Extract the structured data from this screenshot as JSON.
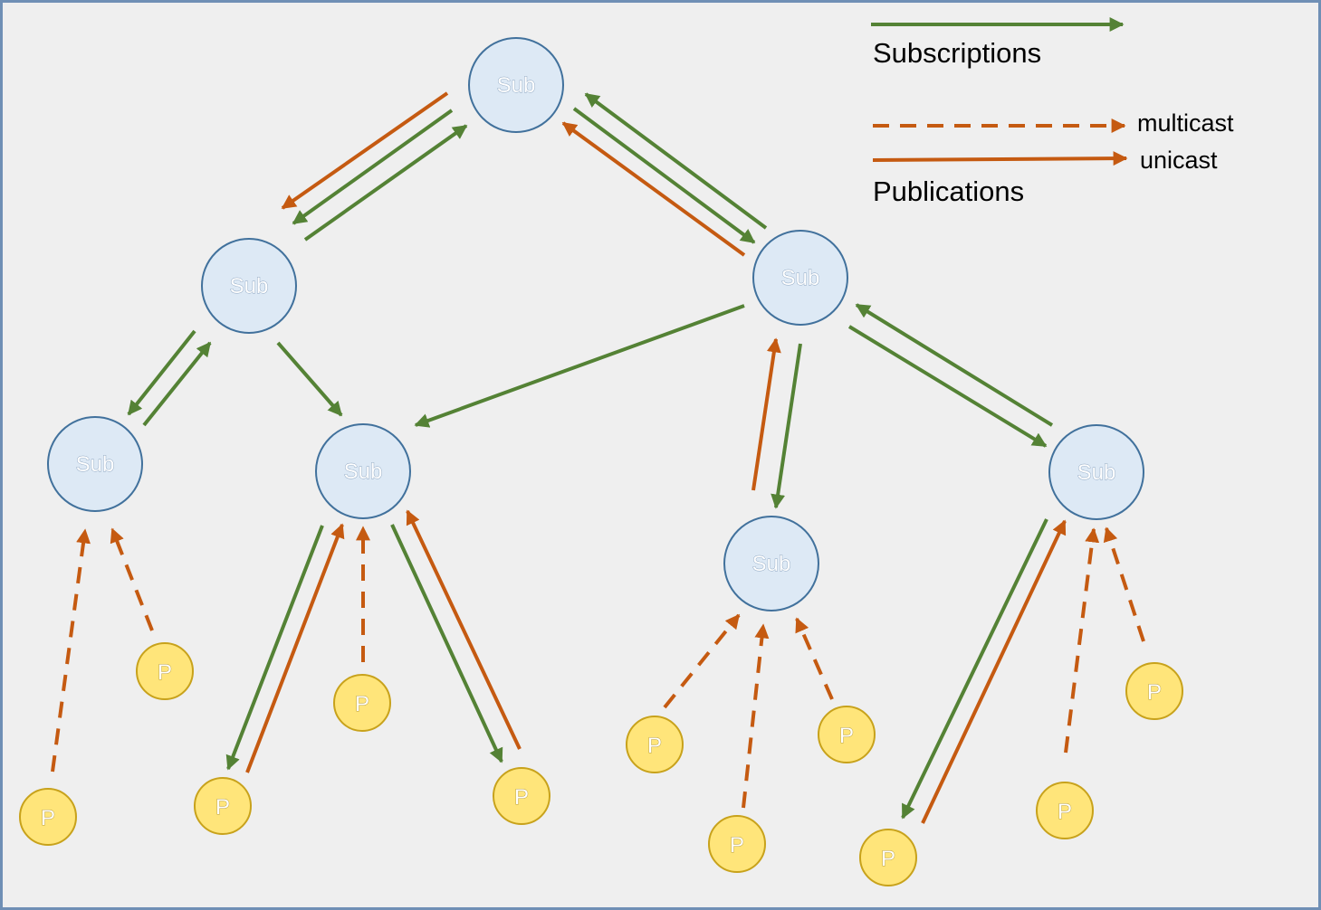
{
  "colors": {
    "subscription": "#548235",
    "publication": "#c55a11",
    "sub_node_fill": "#dde9f5",
    "sub_node_stroke": "#41719c",
    "pub_node_fill": "#ffe57a",
    "pub_node_stroke": "#c8a21b"
  },
  "legend": {
    "subscriptions_label": "Subscriptions",
    "multicast_label": "multicast",
    "unicast_label": "unicast",
    "publications_label": "Publications"
  },
  "nodes": {
    "sub_label": "Sub",
    "pub_label": "P"
  }
}
